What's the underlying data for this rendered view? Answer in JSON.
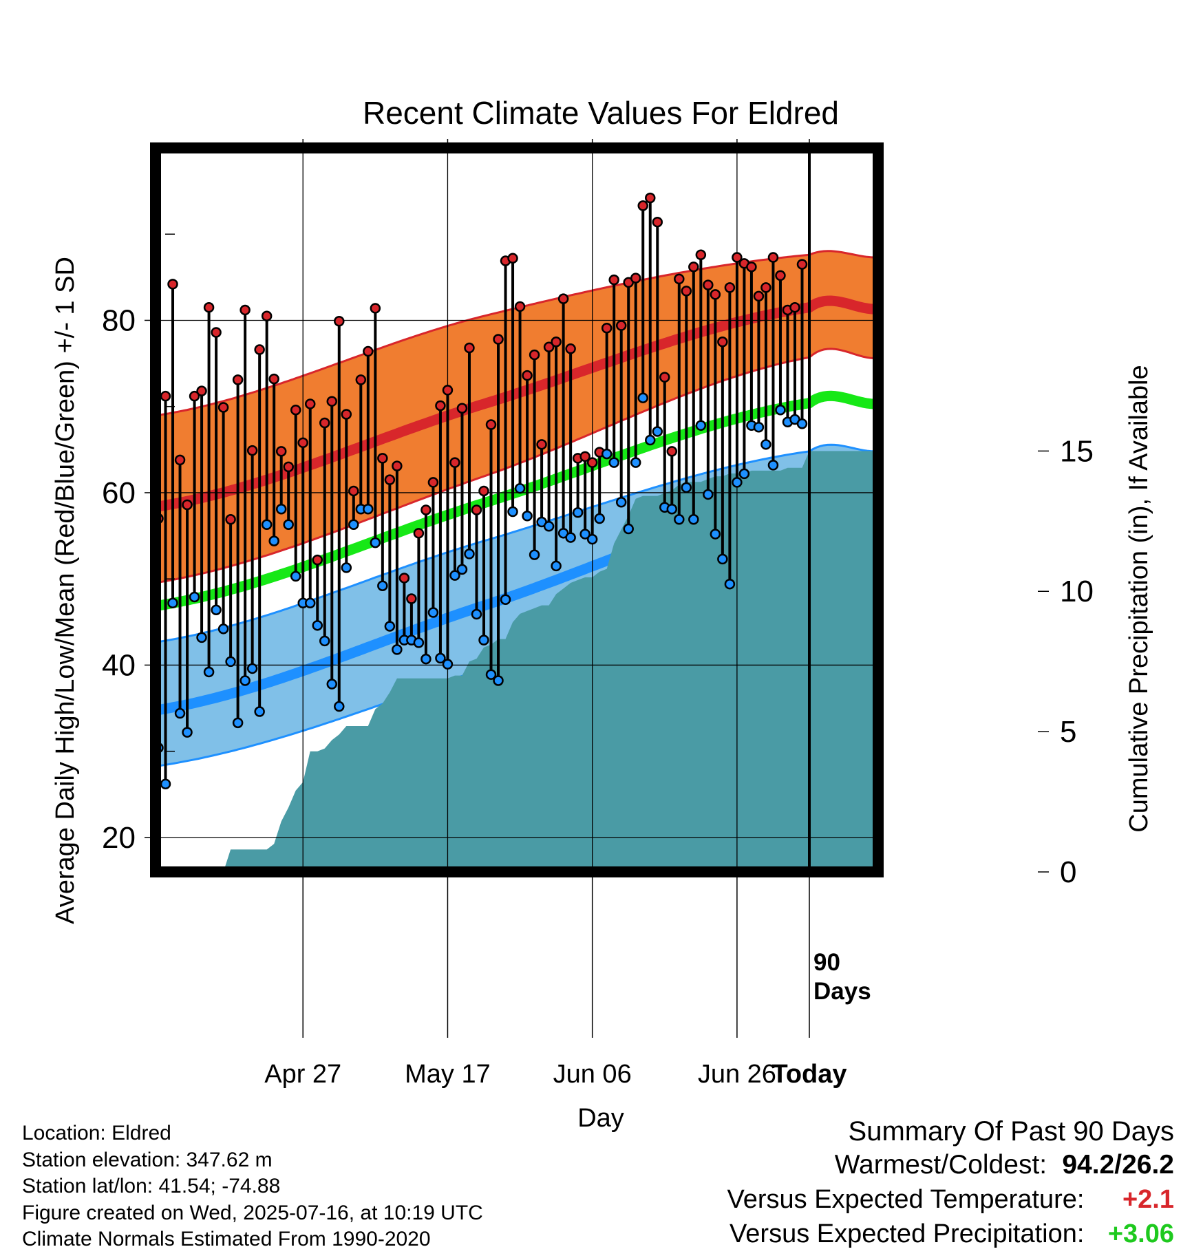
{
  "chart_data": {
    "type": "line",
    "title": "Recent Climate Values For Eldred",
    "xlabel": "Day",
    "ylabel_left": "Average Daily High/Low/Mean (Red/Blue/Green) +/- 1 SD",
    "ylabel_right": "Cumulative Precipitation (in), If Available",
    "x_ticks": [
      "Apr 27",
      "May 17",
      "Jun 06",
      "Jun 26",
      "Today"
    ],
    "y_left_ticks": [
      20,
      40,
      60,
      80
    ],
    "y_left_range": [
      16,
      100
    ],
    "y_right_ticks": [
      0,
      5,
      10,
      15
    ],
    "y_right_range": [
      0,
      25.8
    ],
    "day_range": [
      -90,
      9
    ],
    "today_marker_label": [
      "90",
      "Days"
    ],
    "grid": true,
    "series": [
      {
        "name": "High",
        "color": "#d8262b",
        "band_color": "#f07d30",
        "x": [
          -90,
          -45,
          0,
          9
        ],
        "mean": [
          58.4,
          70.3,
          81.5,
          81.3
        ],
        "sd_upper": [
          69.0,
          80.5,
          87.6,
          87.3
        ],
        "sd_lower": [
          49.6,
          61.9,
          75.7,
          75.6
        ],
        "observed": [
          57,
          71.2,
          84.2,
          63.8,
          58.6,
          71.2,
          71.8,
          81.5,
          78.6,
          69.9,
          56.9,
          73.1,
          81.2,
          64.9,
          76.6,
          80.5,
          73.2,
          64.8,
          63,
          69.6,
          65.8,
          70.3,
          52.2,
          68.1,
          70.6,
          79.9,
          69.1,
          60.2,
          73.1,
          76.4,
          81.4,
          64,
          61.5,
          63.1,
          50.1,
          47.7,
          55.3,
          58,
          61.2,
          70.1,
          71.9,
          63.5,
          69.8,
          76.8,
          58,
          60.2,
          67.9,
          77.8,
          86.9,
          87.2,
          81.6,
          73.6,
          76,
          65.6,
          76.9,
          77.5,
          82.5,
          76.7,
          64,
          64.2,
          63.5,
          64.7,
          79.1,
          84.7,
          79.4,
          84.4,
          84.9,
          93.3,
          94.2,
          91.4,
          73.4,
          64.8,
          84.8,
          83.4,
          86.2,
          87.6,
          84.1,
          83,
          77.5,
          83.8,
          87.3,
          86.6,
          86.2,
          82.8,
          83.8,
          87.3,
          85.2,
          81.2,
          81.5,
          86.5
        ]
      },
      {
        "name": "Low",
        "color": "#1e90ff",
        "band_color": "#80c0e8",
        "x": [
          -90,
          -45,
          0,
          9
        ],
        "mean": [
          34.8,
          46.9,
          59.3,
          59.2
        ],
        "sd_upper": [
          42.7,
          54.4,
          64.8,
          64.8
        ],
        "sd_lower": [
          28.3,
          39.6,
          54.0,
          54.0
        ],
        "observed": [
          30.4,
          26.2,
          47.2,
          34.4,
          32.2,
          47.9,
          43.2,
          39.2,
          46.4,
          44.2,
          40.4,
          33.3,
          38.2,
          39.6,
          34.6,
          56.3,
          54.4,
          58.1,
          56.3,
          50.3,
          47.2,
          47.2,
          44.6,
          42.8,
          37.8,
          35.2,
          51.3,
          56.3,
          58.1,
          58.1,
          54.2,
          49.2,
          44.5,
          41.8,
          42.9,
          42.9,
          42.6,
          40.7,
          46.1,
          40.8,
          40.1,
          50.4,
          51.1,
          52.9,
          45.9,
          42.9,
          38.9,
          38.2,
          47.6,
          57.8,
          60.5,
          57.3,
          52.8,
          56.6,
          56.1,
          51.5,
          55.3,
          54.8,
          57.7,
          55.2,
          54.6,
          57,
          64.5,
          63.5,
          58.9,
          55.8,
          63.5,
          71,
          66.1,
          67.1,
          58.3,
          58.1,
          56.9,
          60.6,
          56.9,
          67.8,
          59.8,
          55.2,
          52.3,
          49.4,
          61.2,
          62.2,
          67.8,
          67.6,
          65.6,
          63.2,
          69.6,
          68.2,
          68.5,
          68
        ]
      },
      {
        "name": "Mean",
        "color": "#16e816",
        "x": [
          -90,
          -45,
          0,
          9
        ],
        "mean": [
          46.9,
          58.8,
          70.4,
          70.3
        ]
      },
      {
        "name": "Cumulative Precipitation",
        "color": "#4a9ba5",
        "x": [
          -90,
          -81,
          -80,
          -75,
          -74,
          -73,
          -72,
          -71,
          -70,
          -69,
          -68,
          -67,
          -66,
          -65,
          -64,
          -63,
          -62,
          -61,
          -60,
          -59,
          -58,
          -57,
          -56,
          -55,
          -54,
          -53,
          -52,
          -51,
          -50,
          -49,
          -48,
          -47,
          -46,
          -45,
          -44,
          -43,
          -42,
          -41,
          -40,
          -39,
          -38,
          -37,
          -36,
          -35,
          -34,
          -33,
          -32,
          -31,
          -30,
          -29,
          -28,
          -27,
          -26,
          -25,
          -24,
          -23,
          -22,
          -21,
          -20,
          -19,
          -18,
          -17,
          -16,
          -15,
          -14,
          -13,
          -12,
          -11,
          -10,
          -9,
          -8,
          -7,
          -6,
          -5,
          -4,
          -3,
          -2,
          -1,
          0,
          9
        ],
        "cumulative": [
          0,
          0,
          0.8,
          0.8,
          1.0,
          1.8,
          2.3,
          2.9,
          3.2,
          4.3,
          4.3,
          4.4,
          4.7,
          4.9,
          5.2,
          5.2,
          5.2,
          5.2,
          5.8,
          6.0,
          6.4,
          6.9,
          6.9,
          6.9,
          6.9,
          6.9,
          6.9,
          6.9,
          6.9,
          7.0,
          7.0,
          7.5,
          7.6,
          8.0,
          8.1,
          8.3,
          8.3,
          8.9,
          9.2,
          9.3,
          9.4,
          9.5,
          9.5,
          9.9,
          10.1,
          10.3,
          10.4,
          10.5,
          10.5,
          10.7,
          10.8,
          11.7,
          12.2,
          12.7,
          13.3,
          13.4,
          13.4,
          13.4,
          13.5,
          13.6,
          13.8,
          13.9,
          13.9,
          13.9,
          14.0,
          14.1,
          14.1,
          14.2,
          14.2,
          14.2,
          14.3,
          14.3,
          14.3,
          14.3,
          14.3,
          14.4,
          14.4,
          14.4,
          15.0,
          15.0
        ]
      }
    ]
  },
  "info": {
    "location": "Location: Eldred",
    "elevation": "Station elevation: 347.62 m",
    "latlon": "Station lat/lon: 41.54; -74.88",
    "created": "Figure created on Wed, 2025-07-16, at 10:19 UTC",
    "normals": "Climate Normals Estimated From 1990-2020"
  },
  "summary": {
    "heading": "Summary Of Past 90 Days",
    "warm_label": "Warmest/Coldest:",
    "warm_value": "94.2/26.2",
    "temp_label": "Versus Expected Temperature:",
    "temp_value": "+2.1",
    "precip_label": "Versus Expected Precipitation:",
    "precip_value": "+3.06",
    "temp_value_color": "#d8262b",
    "precip_value_color": "#1ec91e"
  }
}
